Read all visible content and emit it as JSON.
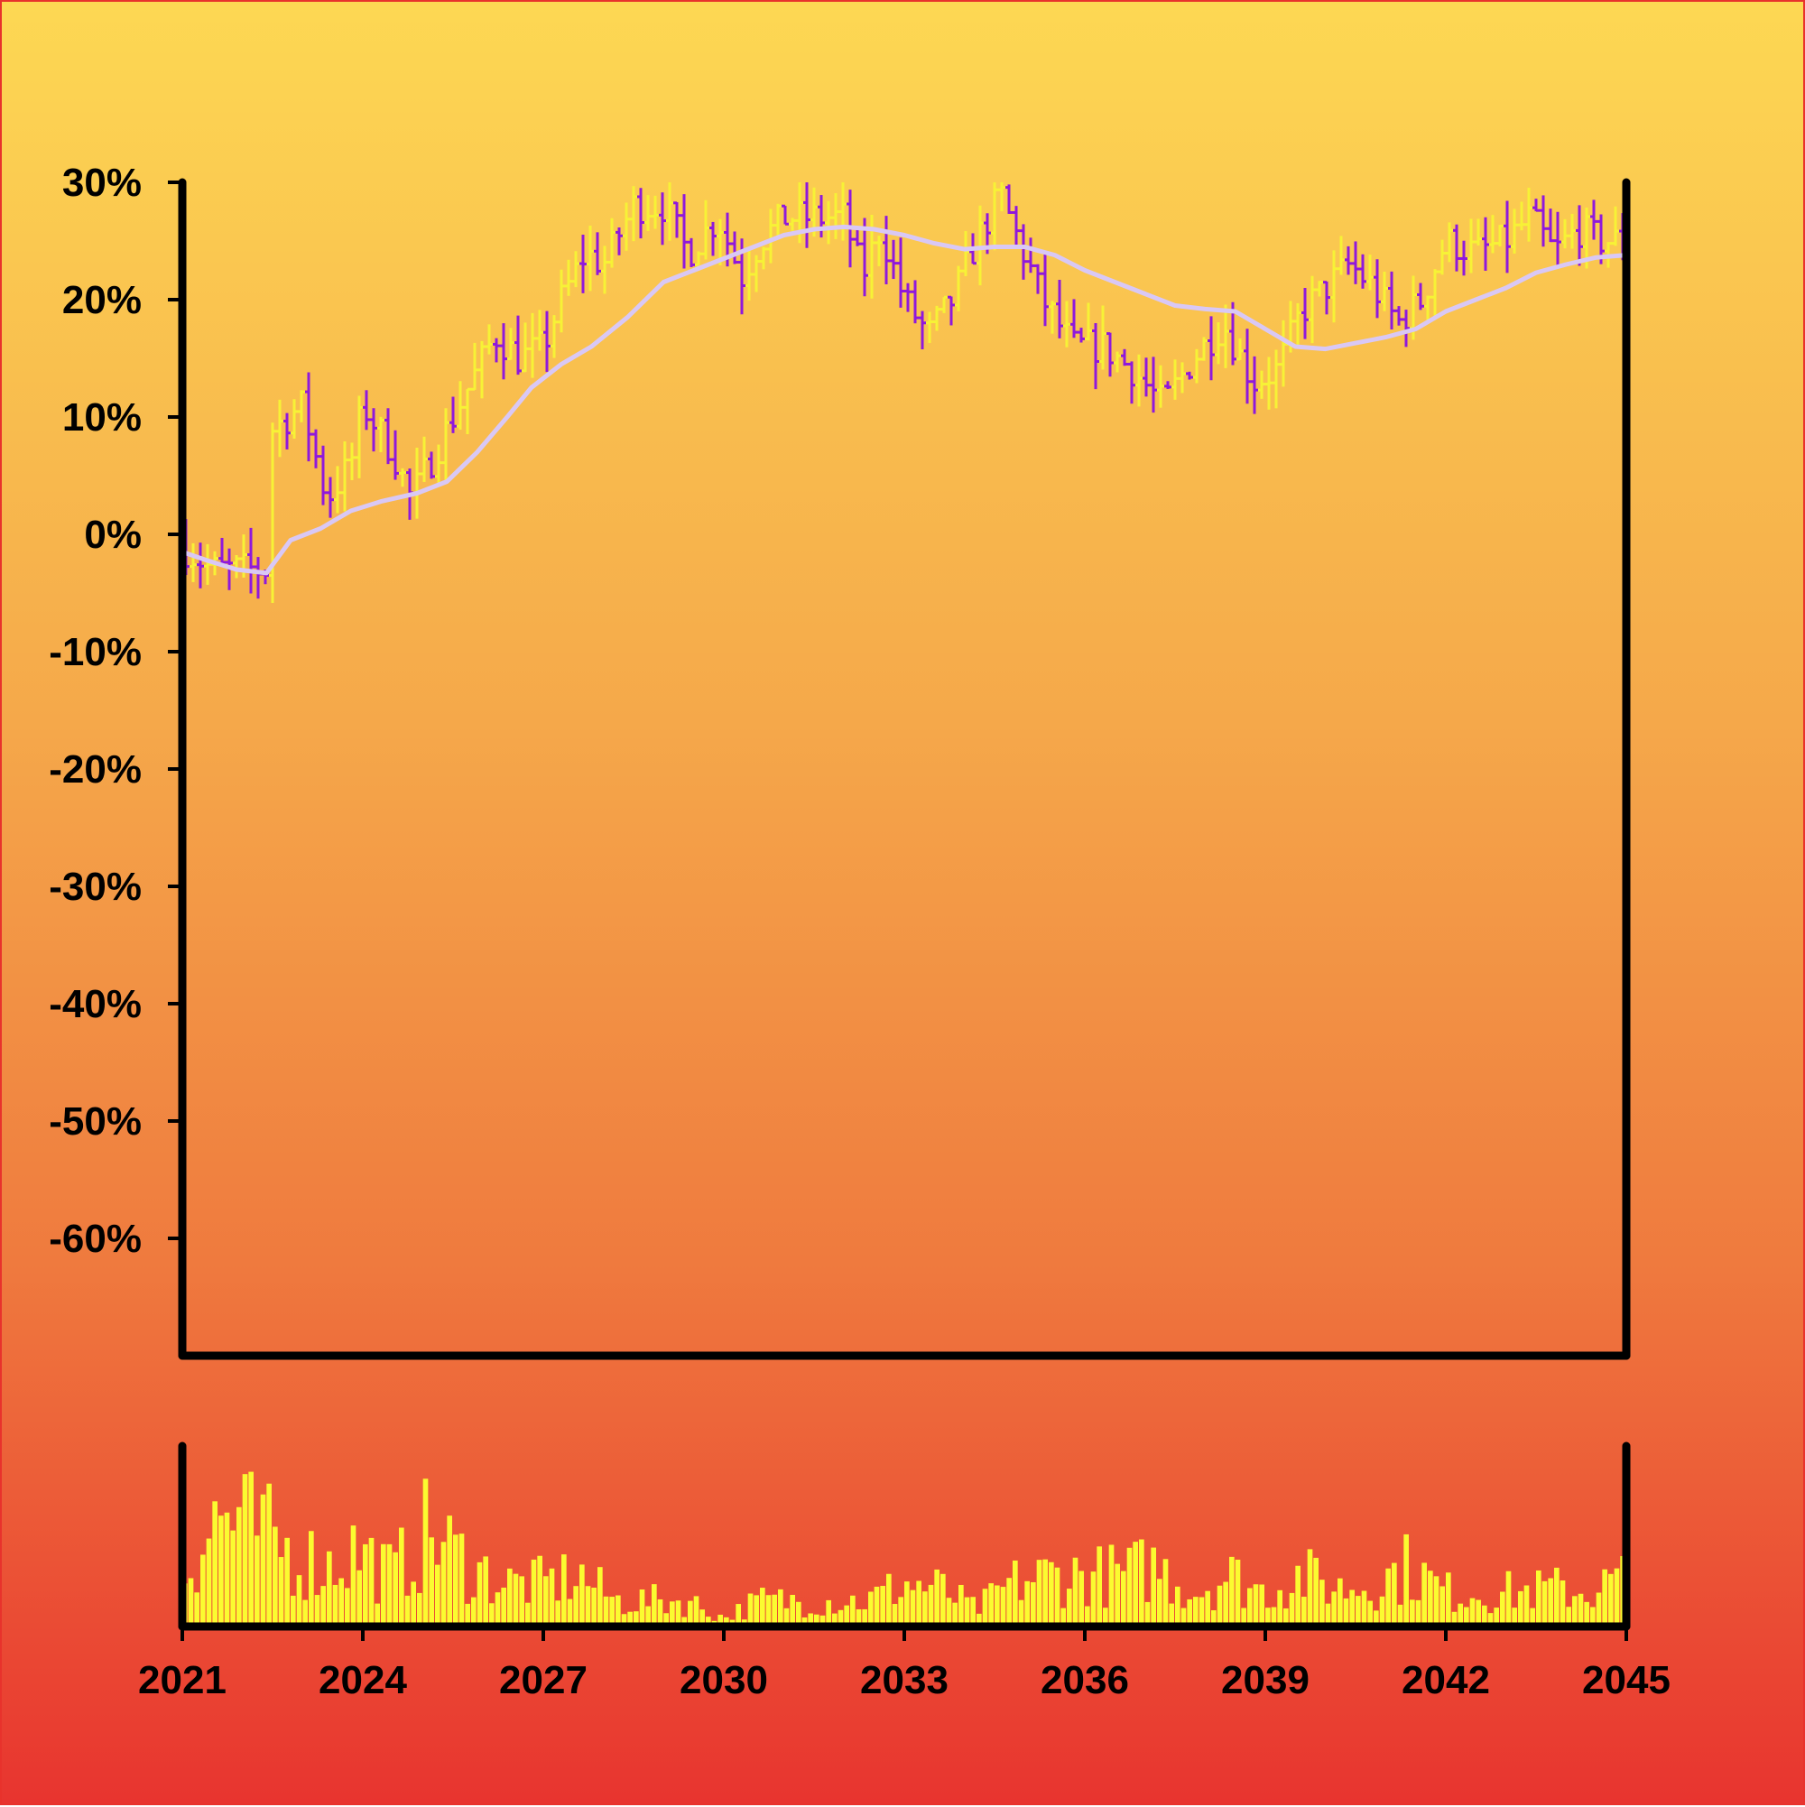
{
  "chart_data": {
    "type": "ohlc",
    "title": "",
    "xlabel": "",
    "ylabel": "",
    "y_unit": "%",
    "x_range": [
      2021,
      2045
    ],
    "ylim": [
      -70,
      30
    ],
    "y_ticks": [
      "30%",
      "20%",
      "10%",
      "0%",
      "-10%",
      "-20%",
      "-30%",
      "-40%",
      "-50%",
      "-60%"
    ],
    "y_tick_values": [
      30,
      20,
      10,
      0,
      -10,
      -20,
      -30,
      -40,
      -50,
      -60
    ],
    "x_ticks": [
      "2021",
      "2024",
      "2027",
      "2030",
      "2033",
      "2036",
      "2039",
      "2042",
      "2045"
    ],
    "x_tick_values": [
      2021,
      2024,
      2027,
      2030,
      2033,
      2036,
      2039,
      2042,
      2045
    ],
    "grid": false,
    "legend": "none",
    "colors": {
      "up": "#f7f236",
      "down": "#8f18dc",
      "moving_average": "#d9c8f5",
      "volume": "#fbfb30",
      "axis": "#000000"
    },
    "price_path": [
      [
        2021.0,
        -1
      ],
      [
        2021.5,
        -3
      ],
      [
        2022.0,
        -3
      ],
      [
        2022.4,
        -3
      ],
      [
        2022.5,
        9
      ],
      [
        2023.0,
        11
      ],
      [
        2023.4,
        3
      ],
      [
        2023.8,
        6
      ],
      [
        2024.0,
        11
      ],
      [
        2024.5,
        7
      ],
      [
        2024.8,
        3
      ],
      [
        2025.2,
        7
      ],
      [
        2025.6,
        11
      ],
      [
        2025.9,
        14
      ],
      [
        2026.2,
        17
      ],
      [
        2026.6,
        15
      ],
      [
        2027.0,
        16
      ],
      [
        2027.3,
        20
      ],
      [
        2027.7,
        24
      ],
      [
        2028.0,
        23
      ],
      [
        2028.5,
        28
      ],
      [
        2029.0,
        28
      ],
      [
        2029.4,
        24
      ],
      [
        2029.9,
        27
      ],
      [
        2030.3,
        22
      ],
      [
        2030.6,
        25
      ],
      [
        2031.0,
        27
      ],
      [
        2031.5,
        27
      ],
      [
        2032.0,
        27
      ],
      [
        2032.3,
        22
      ],
      [
        2032.6,
        26
      ],
      [
        2033.0,
        20
      ],
      [
        2033.4,
        17
      ],
      [
        2033.8,
        20
      ],
      [
        2034.2,
        25
      ],
      [
        2034.6,
        29
      ],
      [
        2034.9,
        25
      ],
      [
        2035.3,
        20
      ],
      [
        2035.8,
        16
      ],
      [
        2036.3,
        16
      ],
      [
        2036.8,
        14
      ],
      [
        2037.3,
        11
      ],
      [
        2037.8,
        15
      ],
      [
        2038.3,
        18
      ],
      [
        2038.8,
        13
      ],
      [
        2039.2,
        14
      ],
      [
        2039.6,
        19
      ],
      [
        2040.0,
        21
      ],
      [
        2040.4,
        23
      ],
      [
        2040.8,
        21
      ],
      [
        2041.2,
        18
      ],
      [
        2041.6,
        20
      ],
      [
        2042.0,
        25
      ],
      [
        2042.5,
        24
      ],
      [
        2043.0,
        25
      ],
      [
        2043.4,
        27
      ],
      [
        2043.8,
        24
      ],
      [
        2044.2,
        26
      ],
      [
        2044.6,
        25
      ],
      [
        2045.0,
        25
      ]
    ],
    "moving_average": [
      [
        2021.0,
        -1.5
      ],
      [
        2021.4,
        -2.2
      ],
      [
        2021.9,
        -3.0
      ],
      [
        2022.4,
        -3.3
      ],
      [
        2022.8,
        -0.5
      ],
      [
        2023.3,
        0.5
      ],
      [
        2023.8,
        2.0
      ],
      [
        2024.3,
        2.8
      ],
      [
        2024.9,
        3.5
      ],
      [
        2025.4,
        4.5
      ],
      [
        2025.9,
        7.0
      ],
      [
        2026.4,
        10.0
      ],
      [
        2026.8,
        12.5
      ],
      [
        2027.3,
        14.5
      ],
      [
        2027.8,
        16.0
      ],
      [
        2028.4,
        18.5
      ],
      [
        2029.0,
        21.5
      ],
      [
        2029.5,
        22.5
      ],
      [
        2030.0,
        23.5
      ],
      [
        2030.5,
        24.5
      ],
      [
        2031.0,
        25.5
      ],
      [
        2031.5,
        26.0
      ],
      [
        2032.0,
        26.2
      ],
      [
        2032.5,
        26.0
      ],
      [
        2033.0,
        25.5
      ],
      [
        2033.5,
        24.8
      ],
      [
        2034.0,
        24.3
      ],
      [
        2034.5,
        24.5
      ],
      [
        2035.0,
        24.5
      ],
      [
        2035.5,
        23.8
      ],
      [
        2036.0,
        22.5
      ],
      [
        2036.5,
        21.5
      ],
      [
        2037.0,
        20.5
      ],
      [
        2037.5,
        19.5
      ],
      [
        2038.0,
        19.2
      ],
      [
        2038.5,
        19.0
      ],
      [
        2039.0,
        17.5
      ],
      [
        2039.5,
        16.0
      ],
      [
        2040.0,
        15.8
      ],
      [
        2040.5,
        16.3
      ],
      [
        2041.0,
        16.8
      ],
      [
        2041.5,
        17.5
      ],
      [
        2042.0,
        19.0
      ],
      [
        2042.5,
        20.0
      ],
      [
        2043.0,
        21.0
      ],
      [
        2043.5,
        22.3
      ],
      [
        2044.0,
        23.0
      ],
      [
        2044.5,
        23.6
      ],
      [
        2045.0,
        23.8
      ]
    ],
    "volume_path": [
      [
        2021.0,
        0.3
      ],
      [
        2021.6,
        0.65
      ],
      [
        2022.3,
        0.55
      ],
      [
        2022.7,
        0.45
      ],
      [
        2023.4,
        0.35
      ],
      [
        2023.9,
        0.45
      ],
      [
        2024.5,
        0.3
      ],
      [
        2025.1,
        0.55
      ],
      [
        2025.8,
        0.35
      ],
      [
        2026.4,
        0.25
      ],
      [
        2027.0,
        0.25
      ],
      [
        2027.6,
        0.3
      ],
      [
        2028.2,
        0.15
      ],
      [
        2028.8,
        0.15
      ],
      [
        2029.4,
        0.15
      ],
      [
        2030.0,
        0.05
      ],
      [
        2030.6,
        0.15
      ],
      [
        2031.2,
        0.15
      ],
      [
        2031.8,
        0.15
      ],
      [
        2032.4,
        0.15
      ],
      [
        2033.0,
        0.25
      ],
      [
        2033.6,
        0.22
      ],
      [
        2034.2,
        0.1
      ],
      [
        2034.8,
        0.25
      ],
      [
        2035.4,
        0.3
      ],
      [
        2036.0,
        0.3
      ],
      [
        2036.6,
        0.3
      ],
      [
        2037.2,
        0.35
      ],
      [
        2037.8,
        0.2
      ],
      [
        2038.4,
        0.3
      ],
      [
        2039.0,
        0.2
      ],
      [
        2039.6,
        0.3
      ],
      [
        2040.2,
        0.22
      ],
      [
        2040.8,
        0.25
      ],
      [
        2041.4,
        0.35
      ],
      [
        2042.0,
        0.2
      ],
      [
        2042.6,
        0.2
      ],
      [
        2043.2,
        0.2
      ],
      [
        2043.8,
        0.22
      ],
      [
        2044.4,
        0.2
      ],
      [
        2045.0,
        0.3
      ]
    ]
  }
}
